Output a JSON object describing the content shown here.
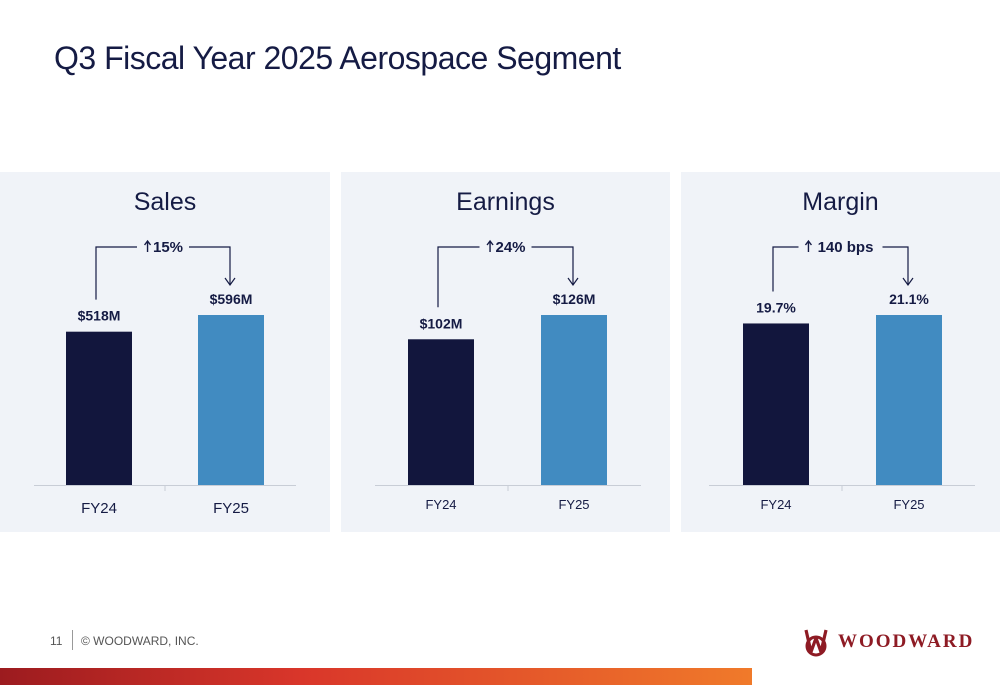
{
  "title": "Q3 Fiscal Year 2025 Aerospace Segment",
  "footer": {
    "page": "11",
    "copyright": "© WOODWARD, INC."
  },
  "logo": {
    "text": "WOODWARD",
    "color": "#8e1b24"
  },
  "colors": {
    "fy24": "#12163d",
    "fy25": "#418bc1",
    "accent_start": "#9c1b1f",
    "accent_end": "#f07a2a"
  },
  "chart_data": [
    {
      "type": "bar",
      "title": "Sales",
      "categories": [
        "FY24",
        "FY25"
      ],
      "values": [
        518,
        596
      ],
      "value_labels": [
        "$518M",
        "$596M"
      ],
      "change_label": "15%",
      "change_direction": "up"
    },
    {
      "type": "bar",
      "title": "Earnings",
      "categories": [
        "FY24",
        "FY25"
      ],
      "values": [
        102,
        126
      ],
      "value_labels": [
        "$102M",
        "$126M"
      ],
      "change_label": "24%",
      "change_direction": "up"
    },
    {
      "type": "bar",
      "title": "Margin",
      "categories": [
        "FY24",
        "FY25"
      ],
      "values": [
        19.7,
        21.1
      ],
      "value_labels": [
        "19.7%",
        "21.1%"
      ],
      "change_label": "140 bps",
      "change_direction": "up"
    }
  ]
}
